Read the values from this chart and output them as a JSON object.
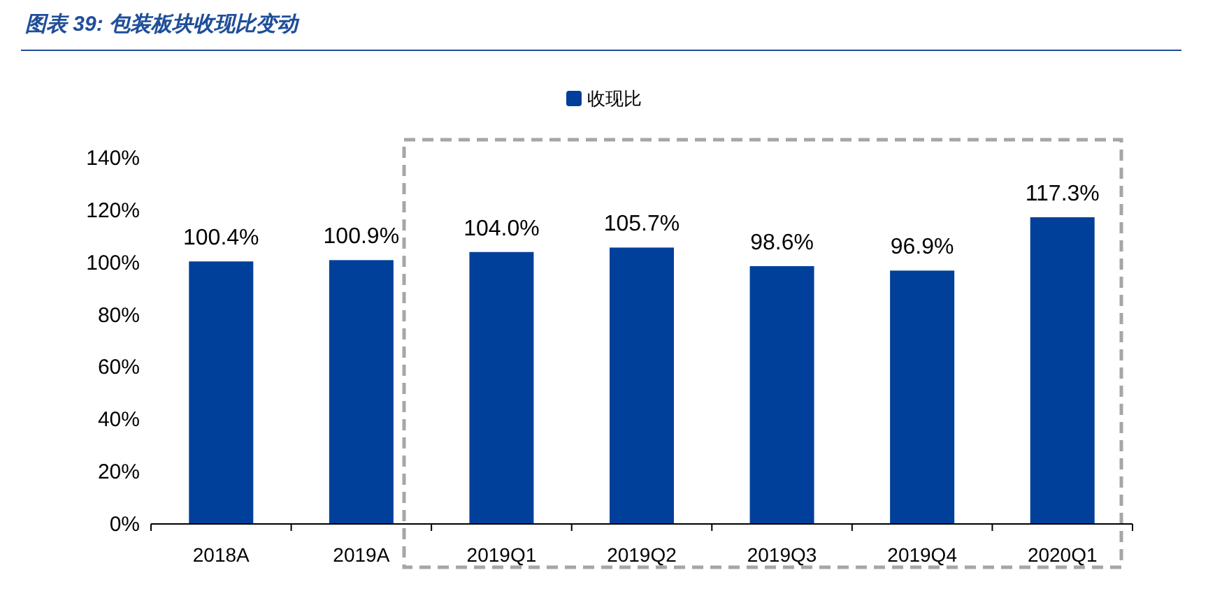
{
  "chart_data": {
    "type": "bar",
    "title": "图表 39: 包装板块收现比变动",
    "categories": [
      "2018A",
      "2019A",
      "2019Q1",
      "2019Q2",
      "2019Q3",
      "2019Q4",
      "2020Q1"
    ],
    "series": [
      {
        "name": "收现比",
        "color": "#00409a",
        "values": [
          100.4,
          100.9,
          104.0,
          105.7,
          98.6,
          96.9,
          117.3
        ],
        "value_labels": [
          "100.4%",
          "100.9%",
          "104.0%",
          "105.7%",
          "98.6%",
          "96.9%",
          "117.3%"
        ]
      }
    ],
    "ylim": [
      0,
      140
    ],
    "yticks": [
      {
        "value": 0,
        "label": "0%"
      },
      {
        "value": 20,
        "label": "20%"
      },
      {
        "value": 40,
        "label": "40%"
      },
      {
        "value": 60,
        "label": "60%"
      },
      {
        "value": 80,
        "label": "80%"
      },
      {
        "value": 100,
        "label": "100%"
      },
      {
        "value": 120,
        "label": "120%"
      },
      {
        "value": 140,
        "label": "140%"
      }
    ],
    "grid": false,
    "legend": "top"
  }
}
